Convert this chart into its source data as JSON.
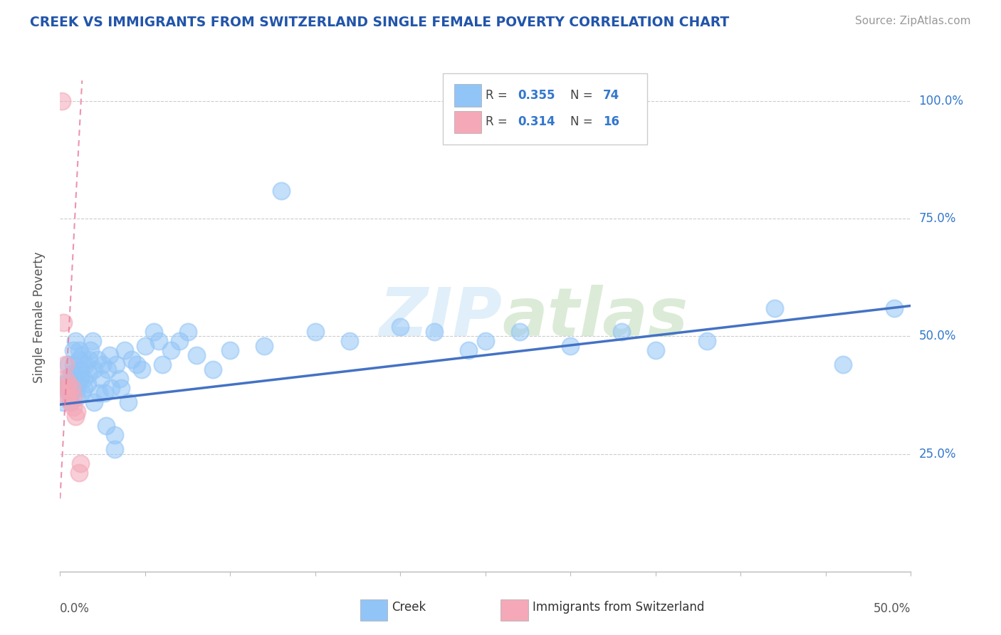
{
  "title": "CREEK VS IMMIGRANTS FROM SWITZERLAND SINGLE FEMALE POVERTY CORRELATION CHART",
  "source_text": "Source: ZipAtlas.com",
  "ylabel": "Single Female Poverty",
  "xlim": [
    0.0,
    0.5
  ],
  "ylim": [
    0.0,
    1.08
  ],
  "creek_color": "#92c5f7",
  "swiss_color": "#f4a8b8",
  "trendline_color": "#4472c4",
  "trendline_pink": "#e87a99",
  "watermark": "ZIPatlas",
  "title_color": "#2255aa",
  "source_color": "#999999",
  "creek_scatter": [
    [
      0.002,
      0.36
    ],
    [
      0.003,
      0.4
    ],
    [
      0.004,
      0.39
    ],
    [
      0.005,
      0.41
    ],
    [
      0.005,
      0.44
    ],
    [
      0.006,
      0.36
    ],
    [
      0.006,
      0.38
    ],
    [
      0.007,
      0.39
    ],
    [
      0.007,
      0.42
    ],
    [
      0.008,
      0.44
    ],
    [
      0.008,
      0.47
    ],
    [
      0.009,
      0.49
    ],
    [
      0.01,
      0.37
    ],
    [
      0.01,
      0.39
    ],
    [
      0.01,
      0.42
    ],
    [
      0.011,
      0.45
    ],
    [
      0.011,
      0.47
    ],
    [
      0.012,
      0.41
    ],
    [
      0.012,
      0.43
    ],
    [
      0.013,
      0.38
    ],
    [
      0.013,
      0.46
    ],
    [
      0.014,
      0.39
    ],
    [
      0.014,
      0.41
    ],
    [
      0.015,
      0.44
    ],
    [
      0.016,
      0.4
    ],
    [
      0.017,
      0.42
    ],
    [
      0.017,
      0.45
    ],
    [
      0.018,
      0.47
    ],
    [
      0.019,
      0.49
    ],
    [
      0.02,
      0.36
    ],
    [
      0.02,
      0.43
    ],
    [
      0.022,
      0.45
    ],
    [
      0.023,
      0.38
    ],
    [
      0.024,
      0.41
    ],
    [
      0.025,
      0.44
    ],
    [
      0.026,
      0.38
    ],
    [
      0.027,
      0.31
    ],
    [
      0.028,
      0.43
    ],
    [
      0.029,
      0.46
    ],
    [
      0.03,
      0.39
    ],
    [
      0.032,
      0.26
    ],
    [
      0.032,
      0.29
    ],
    [
      0.033,
      0.44
    ],
    [
      0.035,
      0.41
    ],
    [
      0.036,
      0.39
    ],
    [
      0.038,
      0.47
    ],
    [
      0.04,
      0.36
    ],
    [
      0.042,
      0.45
    ],
    [
      0.045,
      0.44
    ],
    [
      0.048,
      0.43
    ],
    [
      0.05,
      0.48
    ],
    [
      0.055,
      0.51
    ],
    [
      0.058,
      0.49
    ],
    [
      0.06,
      0.44
    ],
    [
      0.065,
      0.47
    ],
    [
      0.07,
      0.49
    ],
    [
      0.075,
      0.51
    ],
    [
      0.08,
      0.46
    ],
    [
      0.09,
      0.43
    ],
    [
      0.1,
      0.47
    ],
    [
      0.12,
      0.48
    ],
    [
      0.13,
      0.81
    ],
    [
      0.15,
      0.51
    ],
    [
      0.17,
      0.49
    ],
    [
      0.2,
      0.52
    ],
    [
      0.22,
      0.51
    ],
    [
      0.24,
      0.47
    ],
    [
      0.25,
      0.49
    ],
    [
      0.27,
      0.51
    ],
    [
      0.3,
      0.48
    ],
    [
      0.33,
      0.51
    ],
    [
      0.35,
      0.47
    ],
    [
      0.38,
      0.49
    ],
    [
      0.42,
      0.56
    ],
    [
      0.46,
      0.44
    ],
    [
      0.49,
      0.56
    ]
  ],
  "swiss_scatter": [
    [
      0.001,
      1.0
    ],
    [
      0.002,
      0.53
    ],
    [
      0.003,
      0.44
    ],
    [
      0.003,
      0.41
    ],
    [
      0.004,
      0.39
    ],
    [
      0.004,
      0.37
    ],
    [
      0.005,
      0.38
    ],
    [
      0.005,
      0.4
    ],
    [
      0.006,
      0.36
    ],
    [
      0.007,
      0.39
    ],
    [
      0.008,
      0.35
    ],
    [
      0.008,
      0.37
    ],
    [
      0.009,
      0.33
    ],
    [
      0.01,
      0.34
    ],
    [
      0.011,
      0.21
    ],
    [
      0.012,
      0.23
    ]
  ],
  "trend_creek_x0": 0.0,
  "trend_creek_y0": 0.355,
  "trend_creek_x1": 0.5,
  "trend_creek_y1": 0.565,
  "trend_swiss_x0": 0.0,
  "trend_swiss_y0": 0.155,
  "trend_swiss_x1": 0.012,
  "trend_swiss_y1": 0.98,
  "ytick_positions": [
    0.25,
    0.5,
    0.75,
    1.0
  ],
  "ytick_labels": [
    "25.0%",
    "50.0%",
    "75.0%",
    "100.0%"
  ]
}
